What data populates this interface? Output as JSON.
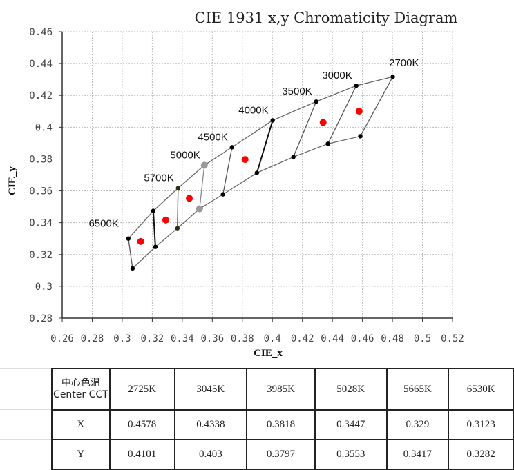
{
  "chart_data": {
    "type": "scatter",
    "title": "CIE 1931 x,y Chromaticity Diagram",
    "xlabel": "CIE_x",
    "ylabel": "CIE_y",
    "xlim": [
      0.26,
      0.52
    ],
    "ylim": [
      0.28,
      0.46
    ],
    "xticks": [
      "0.26",
      "0.28",
      "0.3",
      "0.32",
      "0.34",
      "0.36",
      "0.38",
      "0.4",
      "0.42",
      "0.44",
      "0.46",
      "0.48",
      "0.5",
      "0.52"
    ],
    "yticks": [
      "0.46",
      "0.44",
      "0.42",
      "0.4",
      "0.38",
      "0.36",
      "0.34",
      "0.32",
      "0.3",
      "0.28"
    ],
    "grid": true,
    "upper_boundary": [
      [
        0.3041,
        0.33
      ],
      [
        0.3207,
        0.3474
      ],
      [
        0.3372,
        0.3617
      ],
      [
        0.3547,
        0.3761
      ],
      [
        0.3731,
        0.3874
      ],
      [
        0.4002,
        0.4043
      ],
      [
        0.4292,
        0.4161
      ],
      [
        0.4559,
        0.4261
      ],
      [
        0.4802,
        0.4317
      ]
    ],
    "lower_boundary": [
      [
        0.3069,
        0.3113
      ],
      [
        0.3221,
        0.3248
      ],
      [
        0.3368,
        0.3365
      ],
      [
        0.3515,
        0.3487
      ],
      [
        0.3671,
        0.3578
      ],
      [
        0.3897,
        0.3713
      ],
      [
        0.414,
        0.3813
      ],
      [
        0.437,
        0.3896
      ],
      [
        0.4586,
        0.3943
      ]
    ],
    "cct_labels": [
      {
        "label": "6500K",
        "x": 0.3041,
        "y": 0.33
      },
      {
        "label": "5700K",
        "x": 0.3372,
        "y": 0.3617
      },
      {
        "label": "5000K",
        "x": 0.3547,
        "y": 0.3761
      },
      {
        "label": "4500K",
        "x": 0.3731,
        "y": 0.3874
      },
      {
        "label": "4000K",
        "x": 0.4002,
        "y": 0.4043
      },
      {
        "label": "3500K",
        "x": 0.4292,
        "y": 0.4161
      },
      {
        "label": "3000K",
        "x": 0.4559,
        "y": 0.4261
      },
      {
        "label": "2700K",
        "x": 0.4802,
        "y": 0.4317
      }
    ],
    "center_points": {
      "x": [
        0.4578,
        0.4338,
        0.3818,
        0.3447,
        0.329,
        0.3123
      ],
      "y": [
        0.4101,
        0.403,
        0.3797,
        0.3553,
        0.3417,
        0.3282
      ],
      "color": "#ff0000"
    }
  },
  "table": {
    "header_label": "中心色温 Center CCT",
    "cct": [
      "2725K",
      "3045K",
      "3985K",
      "5028K",
      "5665K",
      "6530K"
    ],
    "row_x_label": "X",
    "x": [
      "0.4578",
      "0.4338",
      "0.3818",
      "0.3447",
      "0.329",
      "0.3123"
    ],
    "row_y_label": "Y",
    "y": [
      "0.4101",
      "0.403",
      "0.3797",
      "0.3553",
      "0.3417",
      "0.3282"
    ]
  }
}
